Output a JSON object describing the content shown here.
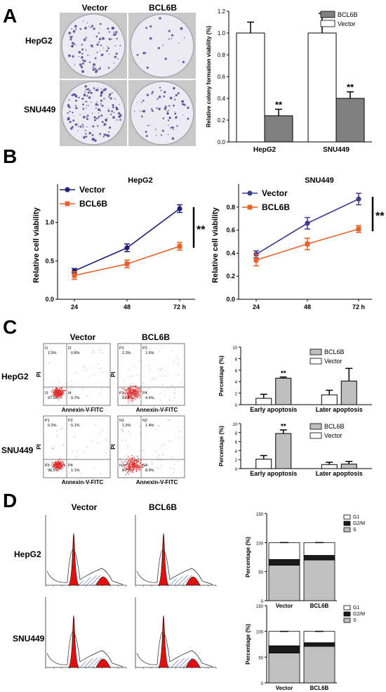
{
  "panel_letters": [
    "A",
    "B",
    "C",
    "D"
  ],
  "panelA": {
    "col_labels": [
      "Vector",
      "BCL6B"
    ],
    "row_labels": [
      "HepG2",
      "SNU449"
    ],
    "dish_colors": {
      "plate_bg": "#c9c9c9",
      "dish": "#ecebf3",
      "colony": "#4b3f8f"
    }
  },
  "chart_data": [
    {
      "id": "A-colony",
      "type": "bar",
      "ylabel": "Relative colony formation viability (%)",
      "categories": [
        "HepG2",
        "SNU449"
      ],
      "series": [
        {
          "name": "Vector",
          "values": [
            1.0,
            1.0
          ],
          "errors": [
            0.1,
            0.18
          ],
          "color": "#ffffff"
        },
        {
          "name": "BCL6B",
          "values": [
            0.24,
            0.4
          ],
          "errors": [
            0.06,
            0.06
          ],
          "color": "#808080"
        }
      ],
      "significance": [
        "**",
        "**"
      ],
      "ylim": [
        0,
        1.2
      ],
      "yticks": [
        "0.0",
        "0.2",
        "0.4",
        "0.6",
        "0.8",
        "1.0",
        "1.2"
      ],
      "legend": "top-right"
    },
    {
      "id": "B-HepG2",
      "type": "line",
      "title": "HepG2",
      "ylabel": "Relative cell viability",
      "x": [
        "24",
        "48",
        "72 h"
      ],
      "series": [
        {
          "name": "Vector",
          "values": [
            0.37,
            0.67,
            1.18
          ],
          "errors": [
            0.03,
            0.05,
            0.05
          ],
          "color": "#1f1f7a"
        },
        {
          "name": "BCL6B",
          "values": [
            0.31,
            0.46,
            0.69
          ],
          "errors": [
            0.05,
            0.05,
            0.05
          ],
          "color": "#e8622c"
        }
      ],
      "ylim": [
        0,
        1.5
      ],
      "yticks": [
        "0.0",
        "0.5",
        "1.0"
      ],
      "significance": "**"
    },
    {
      "id": "B-SNU449",
      "type": "line",
      "title": "SNU449",
      "ylabel": "Relative cell viability",
      "x": [
        "24",
        "48",
        "72 h"
      ],
      "series": [
        {
          "name": "Vector",
          "values": [
            0.39,
            0.66,
            0.87
          ],
          "errors": [
            0.03,
            0.05,
            0.05
          ],
          "color": "#3b3b8f"
        },
        {
          "name": "BCL6B",
          "values": [
            0.34,
            0.48,
            0.61
          ],
          "errors": [
            0.05,
            0.05,
            0.03
          ],
          "color": "#e8622c"
        }
      ],
      "ylim": [
        0,
        1.0
      ],
      "yticks": [
        "0.0",
        "0.2",
        "0.4",
        "0.6",
        "0.8"
      ],
      "significance": "**"
    },
    {
      "id": "C-HepG2",
      "type": "bar",
      "ylabel": "Percentage (%)",
      "categories": [
        "Early apoptosis",
        "Later apoptosis"
      ],
      "series": [
        {
          "name": "Vector",
          "values": [
            1.1,
            1.7
          ],
          "errors": [
            0.7,
            0.8
          ],
          "color": "#ffffff"
        },
        {
          "name": "BCL6B",
          "values": [
            4.6,
            4.1
          ],
          "errors": [
            0.2,
            2.2
          ],
          "color": "#bfbfbf"
        }
      ],
      "significance": [
        "**",
        ""
      ],
      "ylim": [
        0,
        10
      ],
      "yticks": [
        "0",
        "2",
        "4",
        "6",
        "8",
        "10"
      ],
      "legend": "top-right"
    },
    {
      "id": "C-SNU449",
      "type": "bar",
      "ylabel": "Percentage (%)",
      "categories": [
        "Early apoptosis",
        "Later apoptosis"
      ],
      "series": [
        {
          "name": "Vector",
          "values": [
            2.1,
            0.9
          ],
          "errors": [
            0.8,
            0.5
          ],
          "color": "#ffffff"
        },
        {
          "name": "BCL6B",
          "values": [
            7.8,
            1.0
          ],
          "errors": [
            0.8,
            0.6
          ],
          "color": "#bfbfbf"
        }
      ],
      "significance": [
        "**",
        ""
      ],
      "ylim": [
        0,
        10
      ],
      "yticks": [
        "0",
        "2",
        "4",
        "6",
        "8",
        "10"
      ],
      "legend": "top-right"
    },
    {
      "id": "D-HepG2",
      "type": "bar",
      "stacked": true,
      "ylabel": "Percentage (%)",
      "categories": [
        "Vector",
        "BCL6B"
      ],
      "series": [
        {
          "name": "S",
          "values": [
            61,
            70
          ],
          "color": "#c0c0c0"
        },
        {
          "name": "G2/M",
          "values": [
            10,
            8
          ],
          "color": "#1a1a1a"
        },
        {
          "name": "G1",
          "values": [
            29,
            22
          ],
          "color": "#ffffff"
        }
      ],
      "ylim": [
        0,
        150
      ],
      "yticks": [
        "0",
        "50",
        "100",
        "150"
      ],
      "legend": "top-right"
    },
    {
      "id": "D-SNU449",
      "type": "bar",
      "stacked": true,
      "ylabel": "Percentage (%)",
      "categories": [
        "Vector",
        "BCL6B"
      ],
      "series": [
        {
          "name": "S",
          "values": [
            58,
            71
          ],
          "color": "#c0c0c0"
        },
        {
          "name": "G2/M",
          "values": [
            14,
            7
          ],
          "color": "#1a1a1a"
        },
        {
          "name": "G1",
          "values": [
            28,
            22
          ],
          "color": "#ffffff"
        }
      ],
      "ylim": [
        0,
        150
      ],
      "yticks": [
        "0",
        "50",
        "100",
        "150"
      ],
      "legend": "top-right"
    }
  ],
  "panelC_flow": {
    "col_labels": [
      "Vector",
      "BCL6B"
    ],
    "row_labels": [
      "HepG2",
      "SNU449"
    ],
    "xlabel": "Annexin-V-FITC",
    "ylabel": "PI",
    "plots": [
      {
        "quadrants": [
          {
            "name": "I1",
            "pct": "1.0%"
          },
          {
            "name": "I2",
            "pct": "0.8%"
          },
          {
            "name": "I3",
            "pct": "97.5%"
          },
          {
            "name": "I4",
            "pct": "0.7%"
          }
        ]
      },
      {
        "quadrants": [
          {
            "name": "P1",
            "pct": "2.3%"
          },
          {
            "name": "P2",
            "pct": "1.6%"
          },
          {
            "name": "P3",
            "pct": "91.5%"
          },
          {
            "name": "P4",
            "pct": "4.5%"
          }
        ]
      },
      {
        "quadrants": [
          {
            "name": "P1",
            "pct": "0.2%"
          },
          {
            "name": "P2",
            "pct": "0.1%"
          },
          {
            "name": "P3",
            "pct": "98.5%"
          },
          {
            "name": "P4",
            "pct": "1.1%"
          }
        ]
      },
      {
        "quadrants": [
          {
            "name": "N1",
            "pct": "1.9%"
          },
          {
            "name": "N2",
            "pct": "1.4%"
          },
          {
            "name": "N3",
            "pct": "87.7%"
          },
          {
            "name": "N4",
            "pct": "8.9%"
          }
        ]
      }
    ],
    "dot_color": "#e03030"
  },
  "panelD_hist": {
    "col_labels": [
      "Vector",
      "BCL6B"
    ],
    "row_labels": [
      "HepG2",
      "SNU449"
    ],
    "peak_color": "#e01010",
    "hatch_color": "#3a4ab0"
  }
}
